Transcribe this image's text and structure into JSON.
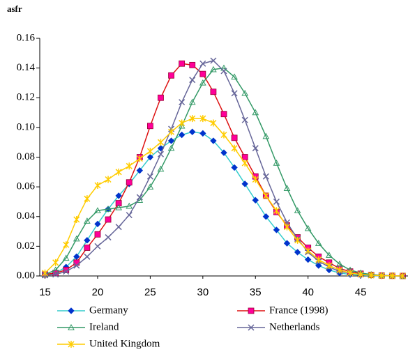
{
  "chart_data": {
    "type": "line",
    "ylabel": "asfr",
    "x": [
      15,
      16,
      17,
      18,
      19,
      20,
      21,
      22,
      23,
      24,
      25,
      26,
      27,
      28,
      29,
      30,
      31,
      32,
      33,
      34,
      35,
      36,
      37,
      38,
      39,
      40,
      41,
      42,
      43,
      44,
      45,
      46,
      47,
      48,
      49
    ],
    "xlim": [
      14.5,
      49.5
    ],
    "xticks": [
      15,
      20,
      25,
      30,
      35,
      40,
      45
    ],
    "ylim": [
      0,
      0.16
    ],
    "yticks": [
      {
        "value": 0,
        "label": "0.00"
      },
      {
        "value": 0.02,
        "label": "0.02"
      },
      {
        "value": 0.04,
        "label": "0.04"
      },
      {
        "value": 0.06,
        "label": "0.06"
      },
      {
        "value": 0.08,
        "label": "0.08"
      },
      {
        "value": 0.1,
        "label": "0.10"
      },
      {
        "value": 0.12,
        "label": "0.12"
      },
      {
        "value": 0.14,
        "label": "0.14"
      },
      {
        "value": 0.16,
        "label": "0.16"
      }
    ],
    "legend": "bottom",
    "series": [
      {
        "name": "Germany",
        "color": "#33cccc",
        "marker": "diamond",
        "marker_color": "#0033cc",
        "values": [
          0.001,
          0.002,
          0.006,
          0.013,
          0.024,
          0.035,
          0.045,
          0.054,
          0.062,
          0.071,
          0.08,
          0.086,
          0.091,
          0.095,
          0.097,
          0.096,
          0.091,
          0.083,
          0.073,
          0.062,
          0.051,
          0.04,
          0.031,
          0.022,
          0.016,
          0.011,
          0.007,
          0.004,
          0.002,
          0.001,
          0.0005,
          0.0002,
          0.0001,
          0,
          0
        ]
      },
      {
        "name": "France (1998)",
        "color": "#dd1111",
        "marker": "square",
        "marker_color": "#ff0099",
        "values": [
          0.001,
          0.002,
          0.004,
          0.009,
          0.019,
          0.028,
          0.038,
          0.049,
          0.063,
          0.08,
          0.101,
          0.12,
          0.135,
          0.143,
          0.142,
          0.136,
          0.124,
          0.109,
          0.093,
          0.08,
          0.067,
          0.054,
          0.043,
          0.034,
          0.026,
          0.019,
          0.013,
          0.009,
          0.005,
          0.003,
          0.0015,
          0.0007,
          0.0003,
          0.0001,
          0
        ]
      },
      {
        "name": "Ireland",
        "color": "#339966",
        "marker": "triangle",
        "marker_color": "#339966",
        "values": [
          0.001,
          0.004,
          0.012,
          0.025,
          0.037,
          0.044,
          0.045,
          0.046,
          0.047,
          0.051,
          0.06,
          0.072,
          0.086,
          0.101,
          0.117,
          0.13,
          0.139,
          0.14,
          0.134,
          0.123,
          0.11,
          0.094,
          0.076,
          0.059,
          0.044,
          0.032,
          0.022,
          0.014,
          0.008,
          0.004,
          0.002,
          0.001,
          0.0004,
          0.0002,
          0
        ]
      },
      {
        "name": "Netherlands",
        "color": "#666699",
        "marker": "cross",
        "marker_color": "#666699",
        "values": [
          0.0005,
          0.001,
          0.003,
          0.007,
          0.013,
          0.02,
          0.026,
          0.033,
          0.041,
          0.053,
          0.067,
          0.082,
          0.099,
          0.117,
          0.132,
          0.143,
          0.145,
          0.138,
          0.123,
          0.105,
          0.086,
          0.067,
          0.05,
          0.036,
          0.025,
          0.016,
          0.01,
          0.006,
          0.003,
          0.002,
          0.001,
          0.0004,
          0.0002,
          0.0001,
          0
        ]
      },
      {
        "name": "United Kingdom",
        "color": "#ffcc00",
        "marker": "star",
        "marker_color": "#ffcc00",
        "values": [
          0.002,
          0.009,
          0.021,
          0.038,
          0.052,
          0.061,
          0.065,
          0.07,
          0.074,
          0.079,
          0.084,
          0.09,
          0.097,
          0.103,
          0.106,
          0.106,
          0.103,
          0.095,
          0.086,
          0.076,
          0.065,
          0.054,
          0.044,
          0.033,
          0.024,
          0.017,
          0.011,
          0.007,
          0.004,
          0.002,
          0.001,
          0.0005,
          0.0002,
          0.0001,
          0
        ]
      }
    ]
  }
}
